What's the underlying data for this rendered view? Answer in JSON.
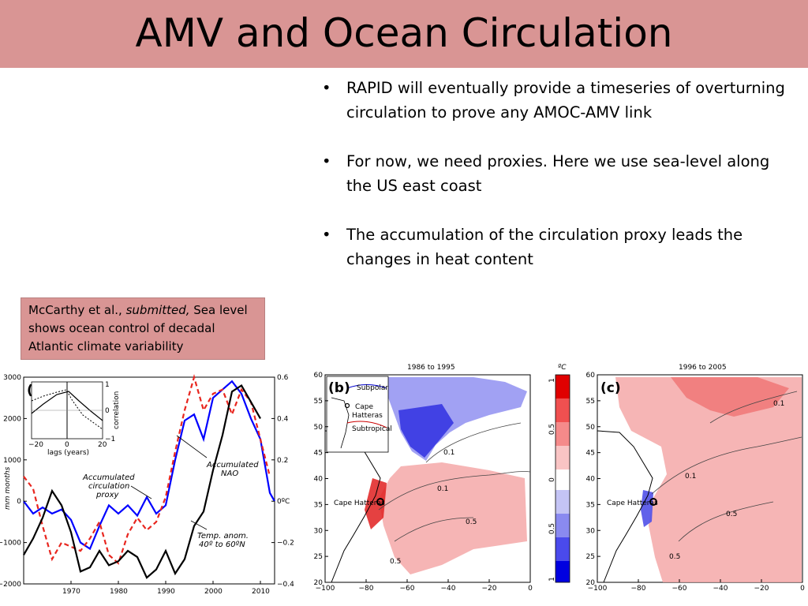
{
  "slide": {
    "title": "AMV and Ocean Circulation"
  },
  "bullets": [
    "RAPID will eventually provide a timeseries of overturning circulation to prove any AMOC-AMV link",
    "For now, we need proxies. Here we use sea-level along the US east coast",
    "The accumulation of the circulation proxy leads the changes in heat content"
  ],
  "reference": {
    "authors": "McCarthy et al., ",
    "status": "submitted,",
    "rest": " Sea level shows ocean control of decadal Atlantic climate variability"
  },
  "colors": {
    "title_bar": "#d99594",
    "ref_box": "#d99594",
    "blue": "#0000ff",
    "red": "#e8261f",
    "warm": "#f4a8a8",
    "cool": "#8a8af0"
  },
  "chart_data": [
    {
      "type": "line",
      "panel": "(a)",
      "ylabel": "mm months",
      "xlim": [
        1960,
        2013
      ],
      "ylim": [
        -2000,
        3000
      ],
      "y2lim": [
        -0.4,
        0.6
      ],
      "y2unit": "ºC",
      "x_ticks": [
        "1970",
        "1980",
        "1990",
        "2000",
        "2010"
      ],
      "y_ticks": [
        "3000",
        "2000",
        "1000",
        "0",
        "−1000",
        "−2000"
      ],
      "y2_ticks": [
        "0.6",
        "0.4",
        "0.2",
        "0ºC",
        "−0.2",
        "−0.4"
      ],
      "annotations": {
        "proxy": "Accumulated circulation proxy",
        "nao": "Accumulated NAO",
        "temp": "Temp. anom. 40º to 60ºN"
      },
      "series": [
        {
          "name": "Accumulated circulation proxy",
          "color": "blue",
          "x": [
            1960,
            1962,
            1964,
            1966,
            1968,
            1970,
            1972,
            1974,
            1976,
            1978,
            1980,
            1982,
            1984,
            1986,
            1988,
            1990,
            1992,
            1994,
            1996,
            1998,
            2000,
            2002,
            2004,
            2006,
            2008,
            2010,
            2012,
            2013
          ],
          "y": [
            0,
            -300,
            -150,
            -300,
            -200,
            -450,
            -1000,
            -1150,
            -600,
            -100,
            -300,
            -100,
            -350,
            100,
            -300,
            -100,
            1000,
            1950,
            2100,
            1500,
            2500,
            2700,
            2900,
            2600,
            2000,
            1500,
            200,
            0
          ]
        },
        {
          "name": "Accumulated NAO",
          "color": "red",
          "x": [
            1960,
            1962,
            1964,
            1966,
            1968,
            1970,
            1972,
            1974,
            1976,
            1978,
            1980,
            1982,
            1984,
            1986,
            1988,
            1990,
            1992,
            1994,
            1996,
            1998,
            2000,
            2002,
            2004,
            2006,
            2008,
            2010,
            2012
          ],
          "y": [
            600,
            300,
            -600,
            -1400,
            -1000,
            -1100,
            -1200,
            -900,
            -500,
            -1300,
            -1500,
            -800,
            -400,
            -700,
            -500,
            100,
            1200,
            2200,
            3000,
            2200,
            2600,
            2700,
            2100,
            2700,
            2400,
            1500,
            600
          ]
        },
        {
          "name": "Temp. anom. 40º to 60ºN",
          "color": "black",
          "x": [
            1960,
            1962,
            1964,
            1966,
            1968,
            1970,
            1972,
            1974,
            1976,
            1978,
            1980,
            1982,
            1984,
            1986,
            1988,
            1990,
            1992,
            1994,
            1996,
            1998,
            2000,
            2002,
            2004,
            2006,
            2008,
            2010
          ],
          "y": [
            -0.26,
            -0.18,
            -0.08,
            0.05,
            -0.02,
            -0.15,
            -0.34,
            -0.32,
            -0.24,
            -0.31,
            -0.29,
            -0.24,
            -0.27,
            -0.37,
            -0.33,
            -0.24,
            -0.35,
            -0.28,
            -0.12,
            -0.05,
            0.15,
            0.32,
            0.53,
            0.56,
            0.48,
            0.4
          ]
        }
      ],
      "inset": {
        "xlabel": "lags (years)",
        "ylabel": "correlation",
        "x_ticks": [
          "−20",
          "0",
          "20"
        ],
        "y_ticks": [
          "1",
          "0",
          "−1"
        ]
      }
    },
    {
      "type": "heatmap",
      "panel": "(b)",
      "title": "1986 to 1995",
      "x_ticks": [
        "−100",
        "−80",
        "−60",
        "−40",
        "−20",
        "0"
      ],
      "y_ticks": [
        "60",
        "55",
        "50",
        "45",
        "40",
        "35",
        "30",
        "25",
        "20"
      ],
      "labels": {
        "city": "Cape Hatteras",
        "inset_subpolar": "Subpolar",
        "inset_cape": "Cape Hatteras",
        "inset_subtropical": "Subtropical"
      },
      "contours": [
        "0.1",
        "0.5",
        "0.5",
        "0.1"
      ]
    },
    {
      "type": "heatmap",
      "panel": "(c)",
      "title": "1996 to 2005",
      "x_ticks": [
        "−100",
        "−80",
        "−60",
        "−40",
        "−20",
        "0"
      ],
      "y_ticks": [
        "60",
        "55",
        "50",
        "45",
        "40",
        "35",
        "30",
        "25",
        "20"
      ],
      "labels": {
        "city": "Cape Hatteras"
      },
      "contours": [
        "0.1",
        "0.5",
        "0.5",
        "0.1"
      ]
    }
  ],
  "colorbar": {
    "unit": "ºC",
    "ticks": [
      "1",
      "0.5",
      "0",
      "0.5",
      "1"
    ]
  }
}
